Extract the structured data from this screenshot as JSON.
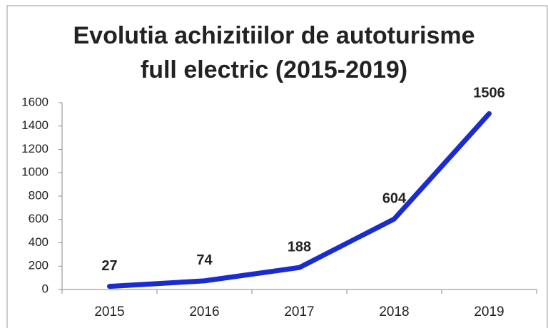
{
  "chart_data": {
    "type": "line",
    "title": [
      "Evolutia achizitiilor de autoturisme",
      "full electric (2015-2019)"
    ],
    "categories": [
      "2015",
      "2016",
      "2017",
      "2018",
      "2019"
    ],
    "values": [
      27,
      74,
      188,
      604,
      1506
    ],
    "color": "#1a2bd0",
    "ylim": [
      0,
      1600
    ],
    "yticks": [
      0,
      200,
      400,
      600,
      800,
      1000,
      1200,
      1400,
      1600
    ],
    "grid": false
  }
}
